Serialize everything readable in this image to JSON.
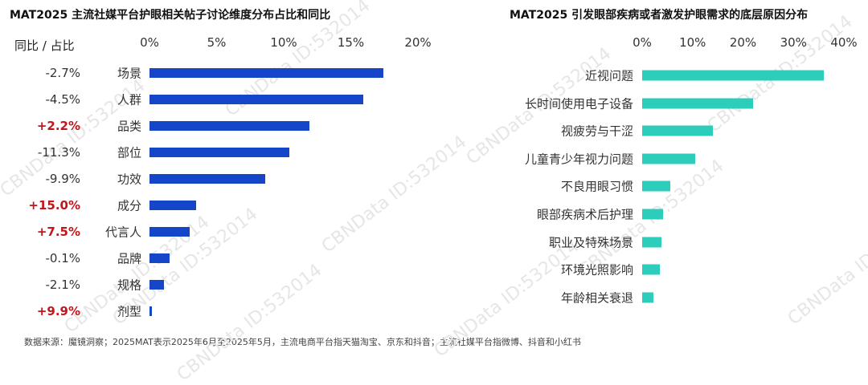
{
  "watermark": "CBNData ID:532014",
  "source": "数据来源：魔镜洞察；2025MAT表示2025年6月至2025年5月，主流电商平台指天猫淘宝、京东和抖音；主流社媒平台指微博、抖音和小红书",
  "colors": {
    "left_bar": "#1546c9",
    "right_bar": "#2dcdbb",
    "positive": "#c0161c",
    "neutral": "#333333"
  },
  "chart_data": [
    {
      "type": "bar",
      "orientation": "horizontal",
      "title": "MAT2025 主流社媒平台护眼相关帖子讨论维度分布占比和同比",
      "yoy_header": "同比 / 占比",
      "xlim": [
        0,
        20
      ],
      "ticks": [
        "0%",
        "5%",
        "10%",
        "15%",
        "20%"
      ],
      "tick_values": [
        0,
        5,
        10,
        15,
        20
      ],
      "categories": [
        "场景",
        "人群",
        "品类",
        "部位",
        "功效",
        "成分",
        "代言人",
        "品牌",
        "规格",
        "剂型"
      ],
      "values": [
        17.4,
        15.9,
        11.9,
        10.4,
        8.6,
        3.5,
        3.0,
        1.5,
        1.1,
        0.2
      ],
      "yoy": [
        "-2.7%",
        "-4.5%",
        "+2.2%",
        "-11.3%",
        "-9.9%",
        "+15.0%",
        "+7.5%",
        "-0.1%",
        "-2.1%",
        "+9.9%"
      ]
    },
    {
      "type": "bar",
      "orientation": "horizontal",
      "title": "MAT2025 引发眼部疾病或者激发护眼需求的底层原因分布",
      "xlim": [
        0,
        40
      ],
      "ticks": [
        "0%",
        "10%",
        "20%",
        "30%",
        "40%"
      ],
      "tick_values": [
        0,
        10,
        20,
        30,
        40
      ],
      "categories": [
        "近视问题",
        "长时间使用电子设备",
        "视疲劳与干涩",
        "儿童青少年视力问题",
        "不良用眼习惯",
        "眼部疾病术后护理",
        "职业及特殊场景",
        "环境光照影响",
        "年龄相关衰退"
      ],
      "values": [
        36,
        22,
        14,
        10.5,
        5.5,
        4.2,
        3.8,
        3.5,
        2.2
      ]
    }
  ]
}
